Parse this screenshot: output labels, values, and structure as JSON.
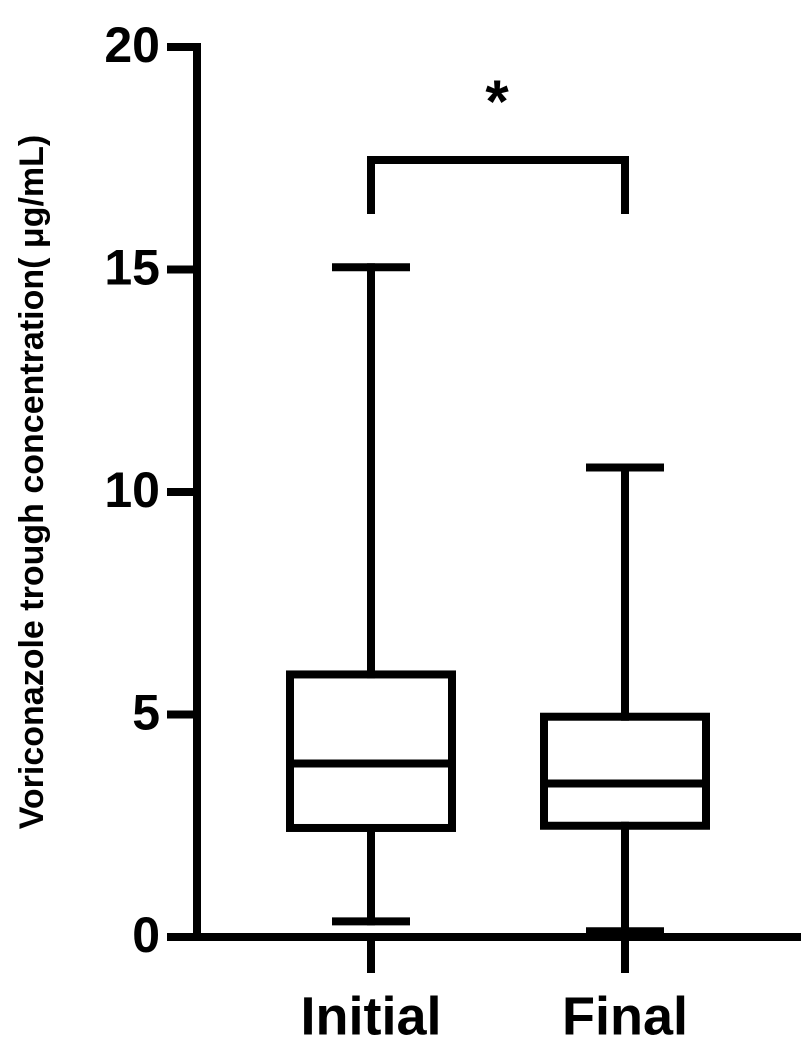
{
  "chart_data": {
    "type": "box",
    "ylabel": "Voriconazole trough concentration( μg/mL)",
    "categories": [
      "Initial",
      "Final"
    ],
    "boxes": [
      {
        "min": 0.35,
        "q1": 2.45,
        "median": 3.9,
        "q3": 5.9,
        "max": 15.05
      },
      {
        "min": 0.13,
        "q1": 2.5,
        "median": 3.45,
        "q3": 4.95,
        "max": 10.55
      }
    ],
    "annotation": "*",
    "ylim": [
      0,
      20
    ],
    "yticks": [
      0,
      5,
      10,
      15,
      20
    ],
    "color": "#000000"
  }
}
